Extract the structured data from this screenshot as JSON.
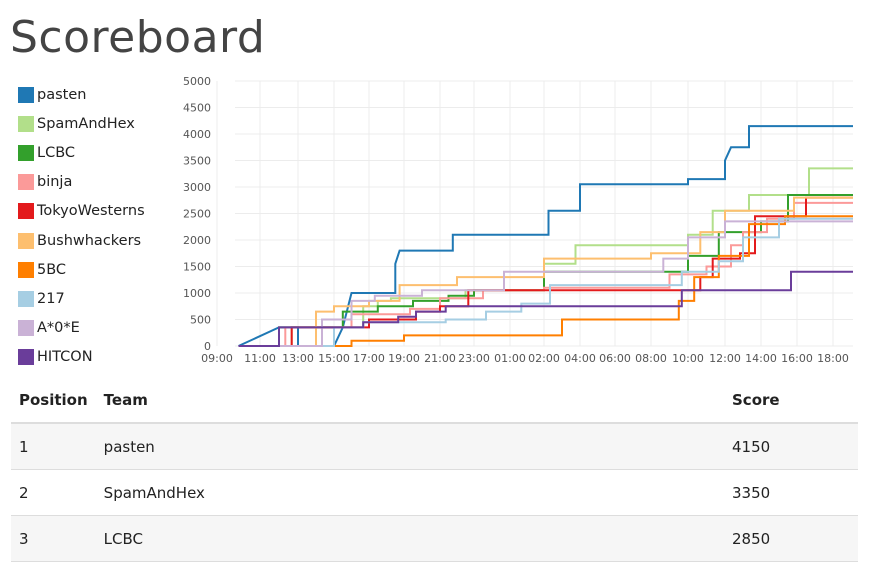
{
  "page": {
    "title": "Scoreboard"
  },
  "table": {
    "headers": {
      "position": "Position",
      "team": "Team",
      "score": "Score"
    },
    "rows": [
      {
        "position": "1",
        "team": "pasten",
        "score": "4150"
      },
      {
        "position": "2",
        "team": "SpamAndHex",
        "score": "3350"
      },
      {
        "position": "3",
        "team": "LCBC",
        "score": "2850"
      }
    ]
  },
  "chart_data": {
    "type": "line",
    "title": "",
    "xlabel": "",
    "ylabel": "",
    "ylim": [
      0,
      5000
    ],
    "yticks": [
      0,
      500,
      1000,
      1500,
      2000,
      2500,
      3000,
      3500,
      4000,
      4500,
      5000
    ],
    "xlim": [
      "09:00",
      "18:40 (next day)"
    ],
    "xtick_labels": [
      "09:00",
      "11:00",
      "13:00",
      "15:00",
      "17:00",
      "19:00",
      "21:00",
      "23:00",
      "01:00",
      "02:00",
      "04:00",
      "06:00",
      "08:00",
      "10:00",
      "12:00",
      "14:00",
      "16:00",
      "18:00"
    ],
    "grid": true,
    "legend_position": "left",
    "step": true,
    "series": [
      {
        "name": "pasten",
        "color": "#1f78b4",
        "points": [
          [
            "10:00",
            0
          ],
          [
            "12:00",
            350
          ],
          [
            "13:00",
            350
          ],
          [
            "13:00",
            0
          ],
          [
            "15:00",
            0
          ],
          [
            "15:30",
            350
          ],
          [
            "16:00",
            1000
          ],
          [
            "18:30",
            1000
          ],
          [
            "18:30",
            1550
          ],
          [
            "18:45",
            1800
          ],
          [
            "21:45",
            1800
          ],
          [
            "21:45",
            2100
          ],
          [
            "02:15",
            2100
          ],
          [
            "02:15",
            2550
          ],
          [
            "04:00",
            2550
          ],
          [
            "04:00",
            3050
          ],
          [
            "10:00",
            3050
          ],
          [
            "10:00",
            3150
          ],
          [
            "12:00",
            3150
          ],
          [
            "12:00",
            3500
          ],
          [
            "12:20",
            3750
          ],
          [
            "13:20",
            3750
          ],
          [
            "13:20",
            4150
          ],
          [
            "18:40",
            4150
          ]
        ]
      },
      {
        "name": "SpamAndHex",
        "color": "#b2df8a",
        "points": [
          [
            "10:00",
            0
          ],
          [
            "12:40",
            0
          ],
          [
            "12:40",
            350
          ],
          [
            "16:40",
            350
          ],
          [
            "16:40",
            750
          ],
          [
            "17:30",
            750
          ],
          [
            "17:30",
            850
          ],
          [
            "18:15",
            850
          ],
          [
            "18:15",
            900
          ],
          [
            "22:30",
            900
          ],
          [
            "22:30",
            1050
          ],
          [
            "02:00",
            1050
          ],
          [
            "02:00",
            1550
          ],
          [
            "03:45",
            1550
          ],
          [
            "03:45",
            1900
          ],
          [
            "10:00",
            1900
          ],
          [
            "10:00",
            2100
          ],
          [
            "11:20",
            2100
          ],
          [
            "11:20",
            2550
          ],
          [
            "13:20",
            2550
          ],
          [
            "13:20",
            2850
          ],
          [
            "16:40",
            2850
          ],
          [
            "16:40",
            3350
          ],
          [
            "18:40",
            3350
          ]
        ]
      },
      {
        "name": "LCBC",
        "color": "#33a02c",
        "points": [
          [
            "10:00",
            0
          ],
          [
            "12:00",
            0
          ],
          [
            "12:00",
            350
          ],
          [
            "15:30",
            350
          ],
          [
            "15:30",
            650
          ],
          [
            "17:30",
            650
          ],
          [
            "17:30",
            750
          ],
          [
            "19:30",
            750
          ],
          [
            "19:30",
            850
          ],
          [
            "21:30",
            850
          ],
          [
            "21:30",
            950
          ],
          [
            "23:00",
            950
          ],
          [
            "23:00",
            1050
          ],
          [
            "02:00",
            1050
          ],
          [
            "02:00",
            1400
          ],
          [
            "10:00",
            1400
          ],
          [
            "10:00",
            1700
          ],
          [
            "11:40",
            1700
          ],
          [
            "11:40",
            2150
          ],
          [
            "14:00",
            2150
          ],
          [
            "14:00",
            2350
          ],
          [
            "15:30",
            2350
          ],
          [
            "15:30",
            2850
          ],
          [
            "18:40",
            2850
          ]
        ]
      },
      {
        "name": "binja",
        "color": "#fb9a99",
        "points": [
          [
            "10:00",
            0
          ],
          [
            "12:20",
            0
          ],
          [
            "12:20",
            350
          ],
          [
            "16:00",
            350
          ],
          [
            "16:00",
            600
          ],
          [
            "19:20",
            600
          ],
          [
            "19:20",
            700
          ],
          [
            "21:00",
            700
          ],
          [
            "21:00",
            900
          ],
          [
            "23:30",
            900
          ],
          [
            "23:30",
            1050
          ],
          [
            "02:00",
            1050
          ],
          [
            "02:00",
            1100
          ],
          [
            "09:00",
            1100
          ],
          [
            "09:00",
            1350
          ],
          [
            "11:00",
            1350
          ],
          [
            "11:00",
            1500
          ],
          [
            "12:20",
            1500
          ],
          [
            "12:20",
            1900
          ],
          [
            "13:00",
            1900
          ],
          [
            "13:00",
            2150
          ],
          [
            "14:20",
            2150
          ],
          [
            "14:20",
            2400
          ],
          [
            "15:50",
            2400
          ],
          [
            "15:50",
            2700
          ],
          [
            "18:40",
            2700
          ]
        ]
      },
      {
        "name": "TokyoWesterns",
        "color": "#e31a1c",
        "points": [
          [
            "10:00",
            0
          ],
          [
            "12:40",
            0
          ],
          [
            "12:40",
            350
          ],
          [
            "17:00",
            350
          ],
          [
            "17:00",
            500
          ],
          [
            "19:40",
            500
          ],
          [
            "19:40",
            650
          ],
          [
            "21:00",
            650
          ],
          [
            "21:00",
            750
          ],
          [
            "22:40",
            750
          ],
          [
            "22:40",
            1050
          ],
          [
            "10:40",
            1050
          ],
          [
            "10:40",
            1300
          ],
          [
            "11:20",
            1300
          ],
          [
            "11:20",
            1650
          ],
          [
            "12:50",
            1650
          ],
          [
            "12:50",
            1750
          ],
          [
            "13:40",
            1750
          ],
          [
            "13:40",
            2450
          ],
          [
            "16:30",
            2450
          ],
          [
            "16:30",
            2800
          ],
          [
            "18:40",
            2800
          ]
        ]
      },
      {
        "name": "Bushwhackers",
        "color": "#fdbf6f",
        "points": [
          [
            "10:00",
            0
          ],
          [
            "14:00",
            0
          ],
          [
            "14:00",
            650
          ],
          [
            "15:00",
            650
          ],
          [
            "15:00",
            750
          ],
          [
            "17:00",
            750
          ],
          [
            "17:00",
            850
          ],
          [
            "18:45",
            850
          ],
          [
            "18:45",
            1150
          ],
          [
            "22:00",
            1150
          ],
          [
            "22:00",
            1300
          ],
          [
            "02:00",
            1300
          ],
          [
            "02:00",
            1650
          ],
          [
            "08:00",
            1650
          ],
          [
            "08:00",
            1750
          ],
          [
            "10:40",
            1750
          ],
          [
            "10:40",
            2150
          ],
          [
            "12:00",
            2150
          ],
          [
            "12:00",
            2550
          ],
          [
            "15:50",
            2550
          ],
          [
            "15:50",
            2800
          ],
          [
            "18:40",
            2800
          ]
        ]
      },
      {
        "name": "5BC",
        "color": "#ff7f00",
        "points": [
          [
            "10:00",
            0
          ],
          [
            "16:00",
            0
          ],
          [
            "16:00",
            100
          ],
          [
            "19:00",
            100
          ],
          [
            "19:00",
            200
          ],
          [
            "03:00",
            200
          ],
          [
            "03:00",
            500
          ],
          [
            "09:30",
            500
          ],
          [
            "09:30",
            850
          ],
          [
            "10:20",
            850
          ],
          [
            "10:20",
            1300
          ],
          [
            "11:40",
            1300
          ],
          [
            "11:40",
            1700
          ],
          [
            "13:20",
            1700
          ],
          [
            "13:20",
            2300
          ],
          [
            "15:20",
            2300
          ],
          [
            "15:20",
            2450
          ],
          [
            "18:40",
            2450
          ]
        ]
      },
      {
        "name": "217",
        "color": "#a6cee3",
        "points": [
          [
            "10:00",
            0
          ],
          [
            "15:00",
            0
          ],
          [
            "15:00",
            350
          ],
          [
            "16:40",
            350
          ],
          [
            "16:40",
            450
          ],
          [
            "21:20",
            450
          ],
          [
            "21:20",
            500
          ],
          [
            "23:40",
            500
          ],
          [
            "23:40",
            650
          ],
          [
            "01:20",
            650
          ],
          [
            "01:20",
            800
          ],
          [
            "02:20",
            800
          ],
          [
            "02:20",
            1150
          ],
          [
            "09:40",
            1150
          ],
          [
            "09:40",
            1400
          ],
          [
            "11:40",
            1400
          ],
          [
            "11:40",
            1600
          ],
          [
            "13:00",
            1600
          ],
          [
            "13:00",
            2050
          ],
          [
            "15:00",
            2050
          ],
          [
            "15:00",
            2400
          ],
          [
            "18:40",
            2400
          ]
        ]
      },
      {
        "name": "A*0*E",
        "color": "#cab2d6",
        "points": [
          [
            "10:00",
            0
          ],
          [
            "14:20",
            0
          ],
          [
            "14:20",
            500
          ],
          [
            "16:00",
            500
          ],
          [
            "16:00",
            850
          ],
          [
            "17:20",
            850
          ],
          [
            "17:20",
            950
          ],
          [
            "20:00",
            950
          ],
          [
            "20:00",
            1050
          ],
          [
            "00:40",
            1050
          ],
          [
            "00:40",
            1400
          ],
          [
            "08:40",
            1400
          ],
          [
            "08:40",
            1650
          ],
          [
            "10:00",
            1650
          ],
          [
            "10:00",
            2050
          ],
          [
            "12:00",
            2050
          ],
          [
            "12:00",
            2350
          ],
          [
            "18:40",
            2350
          ]
        ]
      },
      {
        "name": "HITCON",
        "color": "#6a3d9a",
        "points": [
          [
            "10:00",
            0
          ],
          [
            "12:00",
            0
          ],
          [
            "12:00",
            350
          ],
          [
            "16:40",
            350
          ],
          [
            "16:40",
            450
          ],
          [
            "18:40",
            450
          ],
          [
            "18:40",
            550
          ],
          [
            "19:40",
            550
          ],
          [
            "19:40",
            650
          ],
          [
            "21:20",
            650
          ],
          [
            "21:20",
            750
          ],
          [
            "09:40",
            750
          ],
          [
            "09:40",
            1050
          ],
          [
            "15:40",
            1050
          ],
          [
            "15:40",
            1400
          ],
          [
            "18:40",
            1400
          ]
        ]
      }
    ]
  }
}
